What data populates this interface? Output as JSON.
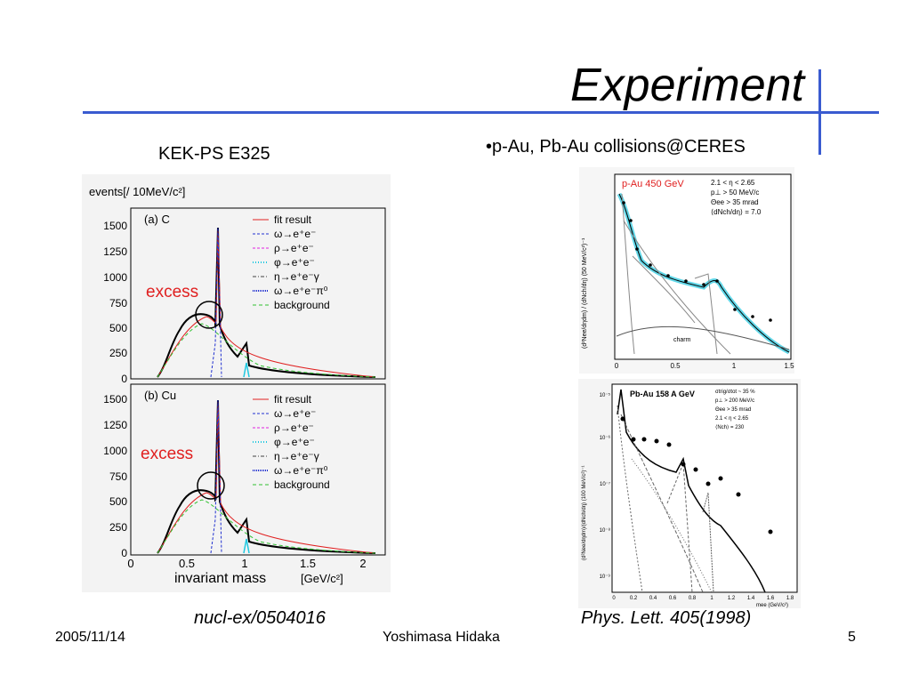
{
  "slide": {
    "title": "Experiment",
    "left_caption": "KEK-PS E325",
    "right_caption": "•p-Au, Pb-Au collisions@CERES",
    "left_reference": "nucl-ex/0504016",
    "right_reference": "Phys. Lett. 405(1998)"
  },
  "footer": {
    "date": "2005/11/14",
    "author": "Yoshimasa Hidaka",
    "page": "5"
  },
  "kek_plot": {
    "ylabel": "events[/ 10MeV/c²]",
    "xlabel": "invariant mass",
    "xunit": "[GeV/c²]",
    "x_ticks": [
      "0",
      "0.5",
      "1",
      "1.5",
      "2"
    ],
    "y_ticks": [
      "0",
      "250",
      "500",
      "750",
      "1000",
      "1250",
      "1500"
    ],
    "panel_a": "(a) C",
    "panel_b": "(b) Cu",
    "excess": "excess",
    "legend": [
      "fit result",
      "ω→e⁺e⁻",
      "ρ→e⁺e⁻",
      "φ→e⁺e⁻",
      "η→e⁺e⁻γ",
      "ω→e⁺e⁻π⁰",
      "background"
    ],
    "legend_colors": [
      "#e02020",
      "#2030d0",
      "#e020e0",
      "#20c8e0",
      "#404040",
      "#2030d0",
      "#30c030"
    ]
  },
  "ceres_pau": {
    "label": "p-Au 450 GeV",
    "cuts": [
      "2.1 < η < 2.65",
      "p⊥ > 50 MeV/c",
      "Θee > 35 mrad",
      "⟨dNch/dη⟩ = 7.0"
    ],
    "ylabel": "(d²Nee/dηdm) / (dNch/dη) (50 MeV/c²)⁻¹",
    "x_ticks": [
      "0",
      "0.5",
      "1",
      "1.5"
    ],
    "curve_labels": [
      "charm"
    ]
  },
  "ceres_pbau": {
    "label": "Pb-Au 158 A GeV",
    "cuts": [
      "σtrig/σtot ~ 35 %",
      "p⊥ > 200 MeV/c",
      "Θee > 35 mrad",
      "2.1 < η < 2.65",
      "⟨Nch⟩ = 230"
    ],
    "ylabel": "(d²Nee/dηdm)/(dNch/dη) (100 MeV/c²)⁻¹",
    "xlabel": "mee (GeV/c²)",
    "x_ticks": [
      "0",
      "0.2",
      "0.4",
      "0.6",
      "0.8",
      "1",
      "1.2",
      "1.4",
      "1.6",
      "1.8"
    ],
    "y_ticks": [
      "10⁻⁵",
      "10⁻⁶",
      "10⁻⁷",
      "10⁻⁸",
      "10⁻⁹"
    ]
  }
}
